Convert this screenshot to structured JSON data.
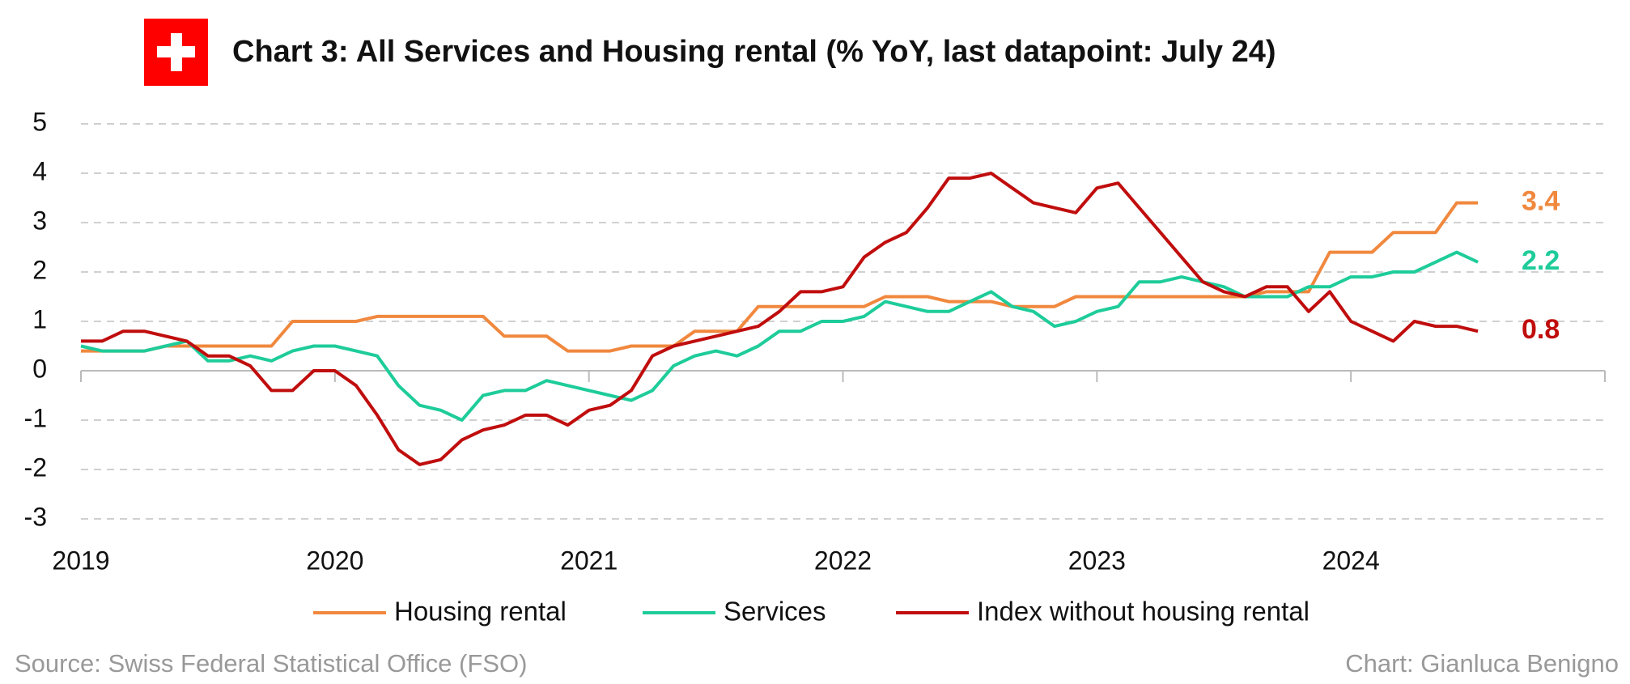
{
  "chart_data": {
    "type": "line",
    "title": "Chart 3: All Services and Housing rental (% YoY, last datapoint: July 24)",
    "source": "Source: Swiss Federal Statistical Office (FSO)",
    "credit": "Chart: Gianluca Benigno",
    "categories": [
      "2019",
      null,
      null,
      null,
      null,
      null,
      null,
      null,
      null,
      null,
      null,
      null,
      "2020",
      null,
      null,
      null,
      null,
      null,
      null,
      null,
      null,
      null,
      null,
      null,
      "2021",
      null,
      null,
      null,
      null,
      null,
      null,
      null,
      null,
      null,
      null,
      null,
      "2022",
      null,
      null,
      null,
      null,
      null,
      null,
      null,
      null,
      null,
      null,
      null,
      "2023",
      null,
      null,
      null,
      null,
      null,
      null,
      null,
      null,
      null,
      null,
      null,
      "2024",
      null,
      null,
      null,
      null,
      null,
      null,
      null,
      null,
      null,
      null,
      null
    ],
    "series": [
      {
        "name": "Housing rental",
        "color": "#f0883e",
        "values": [
          0.4,
          0.4,
          0.4,
          0.4,
          0.5,
          0.5,
          0.5,
          0.5,
          0.5,
          0.5,
          1.0,
          1.0,
          1.0,
          1.0,
          1.1,
          1.1,
          1.1,
          1.1,
          1.1,
          1.1,
          0.7,
          0.7,
          0.7,
          0.4,
          0.4,
          0.4,
          0.5,
          0.5,
          0.5,
          0.8,
          0.8,
          0.8,
          1.3,
          1.3,
          1.3,
          1.3,
          1.3,
          1.3,
          1.5,
          1.5,
          1.5,
          1.4,
          1.4,
          1.4,
          1.3,
          1.3,
          1.3,
          1.5,
          1.5,
          1.5,
          1.5,
          1.5,
          1.5,
          1.5,
          1.5,
          1.5,
          1.6,
          1.6,
          1.6,
          2.4,
          2.4,
          2.4,
          2.8,
          2.8,
          2.8,
          3.4,
          3.4,
          null,
          null,
          null,
          null,
          null
        ]
      },
      {
        "name": "Services",
        "color": "#1ecc9a",
        "values": [
          0.5,
          0.4,
          0.4,
          0.4,
          0.5,
          0.6,
          0.2,
          0.2,
          0.3,
          0.2,
          0.4,
          0.5,
          0.5,
          0.4,
          0.3,
          -0.3,
          -0.7,
          -0.8,
          -1.0,
          -0.5,
          -0.4,
          -0.4,
          -0.2,
          -0.3,
          -0.4,
          -0.5,
          -0.6,
          -0.4,
          0.1,
          0.3,
          0.4,
          0.3,
          0.5,
          0.8,
          0.8,
          1.0,
          1.0,
          1.1,
          1.4,
          1.3,
          1.2,
          1.2,
          1.4,
          1.6,
          1.3,
          1.2,
          0.9,
          1.0,
          1.2,
          1.3,
          1.8,
          1.8,
          1.9,
          1.8,
          1.7,
          1.5,
          1.5,
          1.5,
          1.7,
          1.7,
          1.9,
          1.9,
          2.0,
          2.0,
          2.2,
          2.4,
          2.2,
          null,
          null,
          null,
          null,
          null
        ]
      },
      {
        "name": "Index without housing rental",
        "color": "#c00d0d",
        "values": [
          0.6,
          0.6,
          0.8,
          0.8,
          0.7,
          0.6,
          0.3,
          0.3,
          0.1,
          -0.4,
          -0.4,
          0.0,
          0.0,
          -0.3,
          -0.9,
          -1.6,
          -1.9,
          -1.8,
          -1.4,
          -1.2,
          -1.1,
          -0.9,
          -0.9,
          -1.1,
          -0.8,
          -0.7,
          -0.4,
          0.3,
          0.5,
          0.6,
          0.7,
          0.8,
          0.9,
          1.2,
          1.6,
          1.6,
          1.7,
          2.3,
          2.6,
          2.8,
          3.3,
          3.9,
          3.9,
          4.0,
          3.7,
          3.4,
          3.3,
          3.2,
          3.7,
          3.8,
          3.3,
          2.8,
          2.3,
          1.8,
          1.6,
          1.5,
          1.7,
          1.7,
          1.2,
          1.6,
          1.0,
          0.8,
          0.6,
          1.0,
          0.9,
          0.9,
          0.8,
          null,
          null,
          null,
          null,
          null
        ]
      }
    ],
    "ylim": [
      -3,
      5
    ],
    "yticks": [
      -3,
      -2,
      -1,
      0,
      1,
      2,
      3,
      4,
      5
    ],
    "grid": true,
    "legend": "bottom"
  }
}
